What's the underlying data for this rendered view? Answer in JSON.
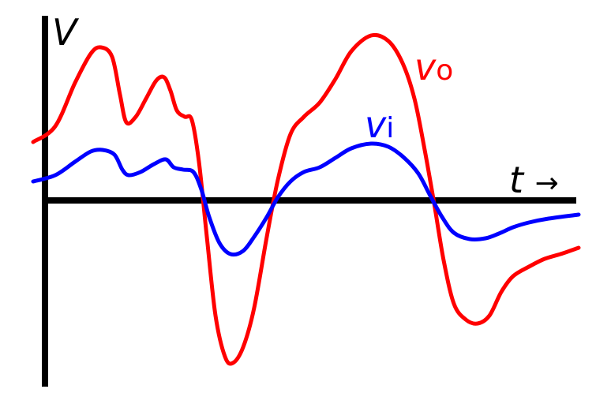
{
  "axes": {
    "y_label": "V",
    "x_label": "t",
    "x_arrow": "→",
    "color": "#000000"
  },
  "signals": {
    "output": {
      "symbol": "v",
      "subscript": "o",
      "color": "#ff0000"
    },
    "input": {
      "symbol": "v",
      "subscript": "i",
      "color": "#0000ff"
    }
  }
}
